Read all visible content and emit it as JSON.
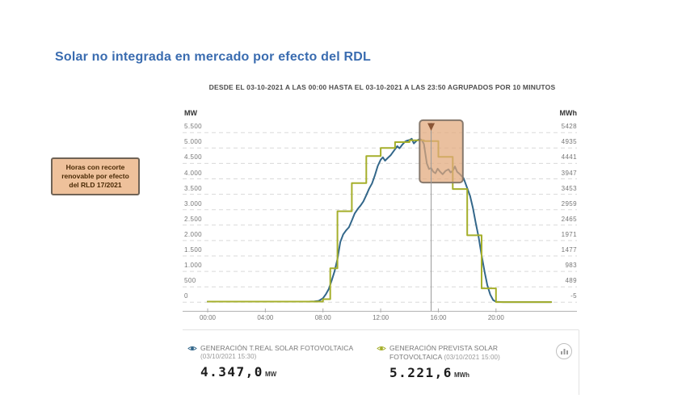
{
  "title": {
    "text": "Solar no integrada en mercado por efecto del RDL",
    "color": "#3a6cb0"
  },
  "subtitle": "DESDE EL 03-10-2021 A LAS 00:00 HASTA EL 03-10-2021 A LAS 23:50 AGRUPADOS POR 10 MINUTOS",
  "annotation_box": {
    "lines": [
      "Horas con recorte",
      "renovable por efecto",
      "del RLD 17/2021"
    ],
    "bg": "#eec19b",
    "border": "#6f6356",
    "text_color": "#4a2a05"
  },
  "axes": {
    "y_left": {
      "unit": "MW",
      "ticks": [
        "5.500",
        "5.000",
        "4.500",
        "4.000",
        "3.500",
        "3.000",
        "2.500",
        "2.000",
        "1.500",
        "1.000",
        "500",
        "0"
      ]
    },
    "y_right": {
      "unit": "MWh",
      "ticks": [
        "5428",
        "4935",
        "4441",
        "3947",
        "3453",
        "2959",
        "2465",
        "1971",
        "1477",
        "983",
        "489",
        "-5"
      ]
    },
    "x": {
      "ticks": [
        "00:00",
        "04:00",
        "08:00",
        "12:00",
        "16:00",
        "20:00"
      ]
    }
  },
  "chart_data": {
    "type": "line",
    "title": "Solar no integrada en mercado por efecto del RDL",
    "x_unit": "hours",
    "x_range": [
      0,
      24
    ],
    "ylim_left_MW": [
      0,
      5500
    ],
    "ylim_right_MWh": [
      -5,
      5428
    ],
    "grid": "horizontal-dashed",
    "series": [
      {
        "name": "GENERACIÓN T.REAL SOLAR FOTOVOLTAICA",
        "color": "#33678a",
        "style": "smooth",
        "points": [
          [
            0,
            20
          ],
          [
            0.5,
            20
          ],
          [
            1,
            20
          ],
          [
            1.5,
            20
          ],
          [
            2,
            20
          ],
          [
            2.5,
            20
          ],
          [
            3,
            20
          ],
          [
            3.5,
            20
          ],
          [
            4,
            20
          ],
          [
            4.5,
            20
          ],
          [
            5,
            20
          ],
          [
            5.5,
            20
          ],
          [
            6,
            20
          ],
          [
            6.5,
            20
          ],
          [
            7,
            20
          ],
          [
            7.4,
            25
          ],
          [
            7.7,
            45
          ],
          [
            8,
            130
          ],
          [
            8.2,
            260
          ],
          [
            8.4,
            430
          ],
          [
            8.6,
            700
          ],
          [
            8.8,
            1000
          ],
          [
            9,
            1400
          ],
          [
            9.2,
            1950
          ],
          [
            9.4,
            2200
          ],
          [
            9.6,
            2330
          ],
          [
            9.8,
            2430
          ],
          [
            10,
            2650
          ],
          [
            10.2,
            2880
          ],
          [
            10.4,
            3020
          ],
          [
            10.6,
            3130
          ],
          [
            10.8,
            3270
          ],
          [
            11,
            3470
          ],
          [
            11.2,
            3680
          ],
          [
            11.4,
            3850
          ],
          [
            11.6,
            4120
          ],
          [
            11.8,
            4420
          ],
          [
            12,
            4620
          ],
          [
            12.15,
            4700
          ],
          [
            12.3,
            4590
          ],
          [
            12.5,
            4680
          ],
          [
            12.7,
            4770
          ],
          [
            12.85,
            4870
          ],
          [
            13,
            4960
          ],
          [
            13.15,
            5060
          ],
          [
            13.3,
            4990
          ],
          [
            13.5,
            5110
          ],
          [
            13.7,
            5210
          ],
          [
            13.85,
            5240
          ],
          [
            14,
            5260
          ],
          [
            14.15,
            5300
          ],
          [
            14.3,
            5150
          ],
          [
            14.5,
            5240
          ],
          [
            14.7,
            5290
          ],
          [
            14.85,
            5260
          ],
          [
            15,
            5130
          ],
          [
            15.2,
            4500
          ],
          [
            15.35,
            4320
          ],
          [
            15.5,
            4347
          ],
          [
            15.65,
            4230
          ],
          [
            15.8,
            4180
          ],
          [
            15.95,
            4330
          ],
          [
            16.1,
            4240
          ],
          [
            16.3,
            4150
          ],
          [
            16.5,
            4260
          ],
          [
            16.7,
            4310
          ],
          [
            16.85,
            4210
          ],
          [
            17,
            4260
          ],
          [
            17.15,
            4400
          ],
          [
            17.3,
            4230
          ],
          [
            17.5,
            4150
          ],
          [
            17.75,
            4020
          ],
          [
            18,
            3700
          ],
          [
            18.2,
            3450
          ],
          [
            18.4,
            3050
          ],
          [
            18.6,
            2550
          ],
          [
            18.8,
            2100
          ],
          [
            19,
            1520
          ],
          [
            19.2,
            1000
          ],
          [
            19.4,
            550
          ],
          [
            19.6,
            250
          ],
          [
            19.8,
            70
          ],
          [
            20,
            15
          ],
          [
            20.5,
            5
          ],
          [
            21,
            5
          ],
          [
            21.5,
            5
          ],
          [
            22,
            5
          ],
          [
            22.5,
            5
          ],
          [
            23,
            5
          ],
          [
            23.5,
            5
          ],
          [
            23.83,
            5
          ]
        ]
      },
      {
        "name": "GENERACIÓN PREVISTA SOLAR FOTOVOLTAICA",
        "color": "#a5af2b",
        "style": "step",
        "points": [
          [
            0,
            20
          ],
          [
            8,
            100
          ],
          [
            8.5,
            1100
          ],
          [
            9,
            2950
          ],
          [
            10,
            3860
          ],
          [
            11,
            4740
          ],
          [
            12,
            5000
          ],
          [
            13,
            5190
          ],
          [
            14,
            5250
          ],
          [
            15,
            5222
          ],
          [
            16,
            4715
          ],
          [
            17,
            3670
          ],
          [
            18,
            2170
          ],
          [
            19,
            450
          ],
          [
            20,
            5
          ],
          [
            23.83,
            5
          ]
        ]
      }
    ],
    "highlight_region": {
      "from_hour": 14.7,
      "to_hour": 17.7,
      "top_mw": 5900,
      "bottom_mw": 3880,
      "fill": "#e2a87a",
      "opacity": 0.72,
      "border": "#87796d",
      "meaning": "Horas con recorte renovable por efecto del RLD 17/2021"
    },
    "cursor": {
      "hour": 15.5,
      "line_color": "#9a9a9a",
      "marker_color": "#8a5535"
    }
  },
  "legend": {
    "entries": [
      {
        "label": "GENERACIÓN T.REAL SOLAR FOTOVOLTAICA",
        "date": "(03/10/2021 15:30)",
        "value": "4.347,0",
        "unit": "MW",
        "color": "#33678a"
      },
      {
        "label": "GENERACIÓN PREVISTA SOLAR FOTOVOLTAICA",
        "date": "(03/10/2021 15:00)",
        "value": "5.221,6",
        "unit": "MWh",
        "color": "#a5af2b"
      }
    ]
  }
}
